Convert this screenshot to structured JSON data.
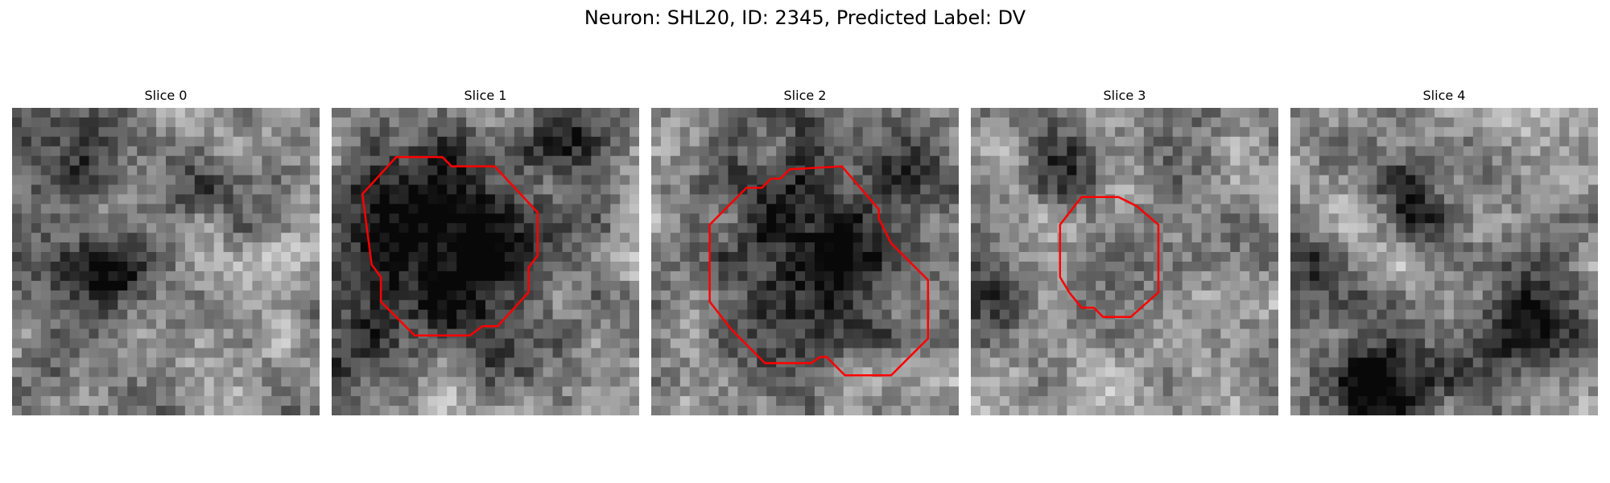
{
  "figure": {
    "title": "Neuron: SHL20, ID: 2345, Predicted Label: DV"
  },
  "panels": [
    {
      "title": "Slice 0",
      "seed": 11,
      "dark_blobs": [
        [
          0.28,
          0.53,
          0.1,
          0.85
        ],
        [
          0.15,
          0.15,
          0.12,
          0.45
        ],
        [
          0.55,
          0.3,
          0.12,
          0.35
        ]
      ],
      "contour": []
    },
    {
      "title": "Slice 1",
      "seed": 23,
      "dark_blobs": [
        [
          0.4,
          0.43,
          0.22,
          0.95
        ],
        [
          0.78,
          0.08,
          0.1,
          0.4
        ],
        [
          0.1,
          0.85,
          0.1,
          0.35
        ]
      ],
      "contour": [
        [
          0.21,
          0.16
        ],
        [
          0.36,
          0.16
        ],
        [
          0.39,
          0.19
        ],
        [
          0.53,
          0.19
        ],
        [
          0.67,
          0.34
        ],
        [
          0.67,
          0.48
        ],
        [
          0.64,
          0.52
        ],
        [
          0.64,
          0.6
        ],
        [
          0.54,
          0.71
        ],
        [
          0.49,
          0.71
        ],
        [
          0.45,
          0.74
        ],
        [
          0.27,
          0.74
        ],
        [
          0.16,
          0.63
        ],
        [
          0.16,
          0.55
        ],
        [
          0.13,
          0.51
        ],
        [
          0.1,
          0.28
        ]
      ]
    },
    {
      "title": "Slice 2",
      "seed": 37,
      "dark_blobs": [
        [
          0.52,
          0.48,
          0.25,
          0.65
        ],
        [
          0.85,
          0.2,
          0.1,
          0.4
        ]
      ],
      "contour": [
        [
          0.31,
          0.26
        ],
        [
          0.36,
          0.26
        ],
        [
          0.39,
          0.23
        ],
        [
          0.42,
          0.23
        ],
        [
          0.45,
          0.2
        ],
        [
          0.62,
          0.19
        ],
        [
          0.74,
          0.33
        ],
        [
          0.74,
          0.36
        ],
        [
          0.78,
          0.44
        ],
        [
          0.9,
          0.56
        ],
        [
          0.9,
          0.75
        ],
        [
          0.78,
          0.87
        ],
        [
          0.63,
          0.87
        ],
        [
          0.57,
          0.81
        ],
        [
          0.55,
          0.81
        ],
        [
          0.52,
          0.83
        ],
        [
          0.37,
          0.83
        ],
        [
          0.26,
          0.72
        ],
        [
          0.19,
          0.63
        ],
        [
          0.19,
          0.38
        ]
      ]
    },
    {
      "title": "Slice 3",
      "seed": 53,
      "dark_blobs": [
        [
          0.33,
          0.2,
          0.08,
          0.4
        ],
        [
          0.1,
          0.6,
          0.1,
          0.3
        ]
      ],
      "contour": [
        [
          0.36,
          0.29
        ],
        [
          0.42,
          0.29
        ],
        [
          0.48,
          0.29
        ],
        [
          0.54,
          0.32
        ],
        [
          0.61,
          0.38
        ],
        [
          0.61,
          0.6
        ],
        [
          0.52,
          0.68
        ],
        [
          0.43,
          0.68
        ],
        [
          0.4,
          0.65
        ],
        [
          0.36,
          0.65
        ],
        [
          0.32,
          0.6
        ],
        [
          0.29,
          0.55
        ],
        [
          0.29,
          0.38
        ]
      ]
    },
    {
      "title": "Slice 4",
      "seed": 71,
      "dark_blobs": [
        [
          0.3,
          0.88,
          0.14,
          0.8
        ],
        [
          0.4,
          0.25,
          0.1,
          0.6
        ],
        [
          0.8,
          0.7,
          0.14,
          0.6
        ],
        [
          0.1,
          0.5,
          0.08,
          0.5
        ]
      ],
      "contour": []
    }
  ],
  "style": {
    "contour_color": "#ff0000"
  }
}
